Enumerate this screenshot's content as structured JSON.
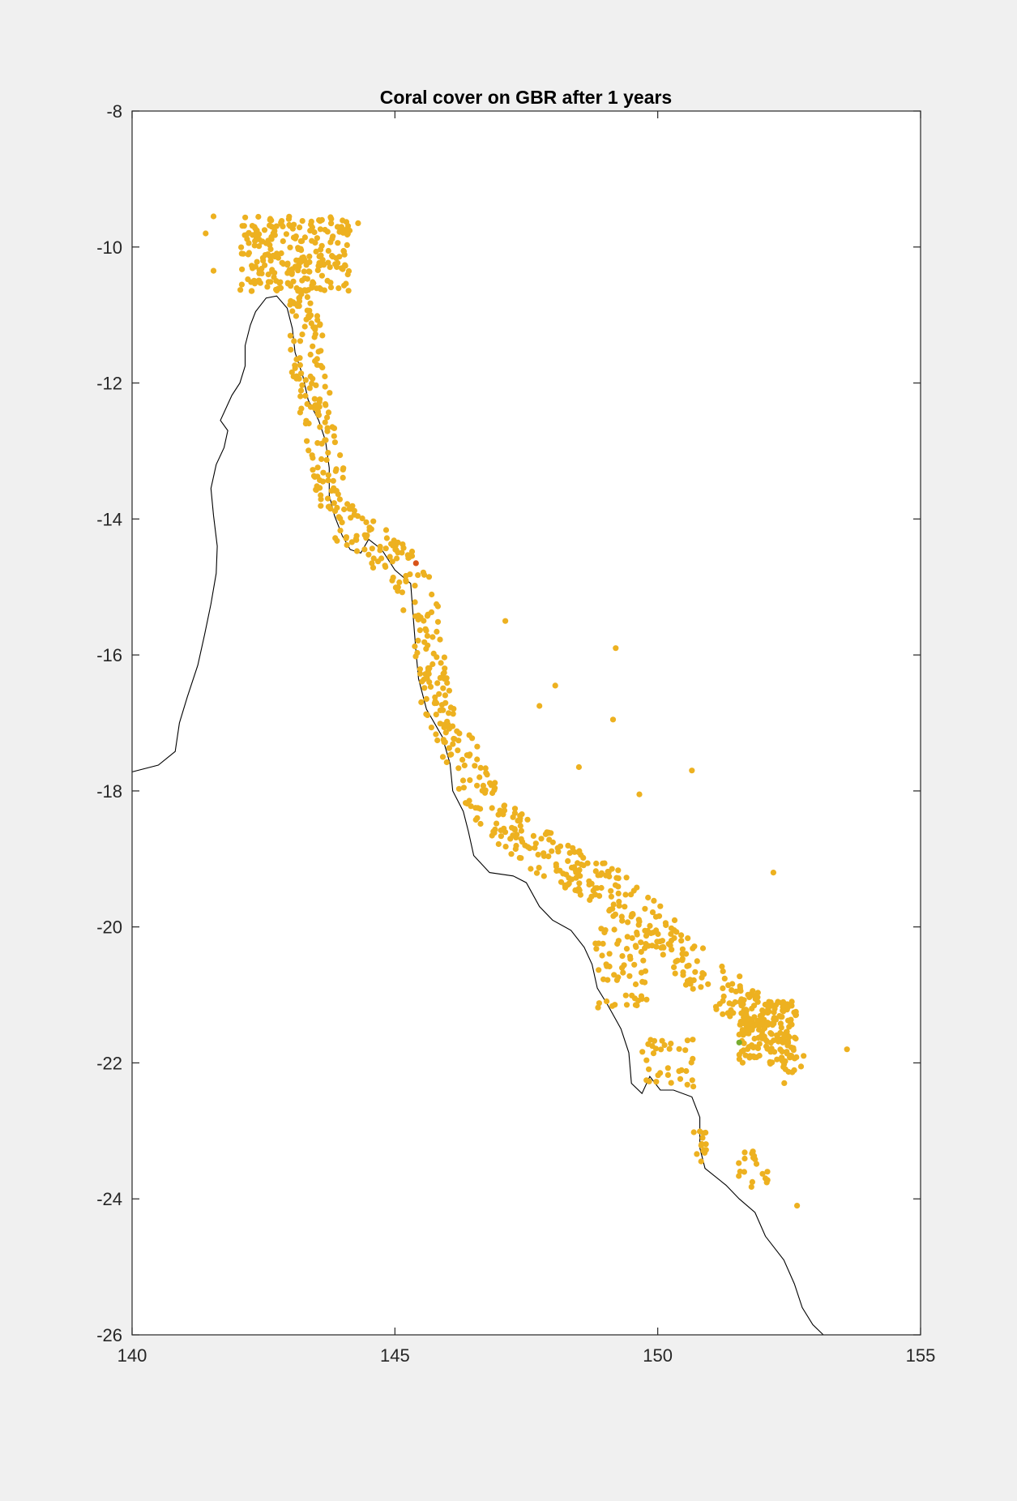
{
  "chart_data": {
    "type": "scatter",
    "title": "Coral cover on GBR after 1 years",
    "xlabel": "",
    "ylabel": "",
    "xlim": [
      140,
      155
    ],
    "ylim": [
      -26,
      -8
    ],
    "xticks": [
      "140",
      "145",
      "150",
      "155"
    ],
    "yticks": [
      "-8",
      "-10",
      "-12",
      "-14",
      "-16",
      "-18",
      "-20",
      "-22",
      "-24",
      "-26"
    ],
    "grid": false,
    "legend": "none",
    "marker_color": "#EDB120",
    "coastline_color": "#000000",
    "coastline": [
      [
        140.0,
        -17.72
      ],
      [
        140.5,
        -17.62
      ],
      [
        140.82,
        -17.42
      ],
      [
        140.9,
        -17.0
      ],
      [
        141.05,
        -16.62
      ],
      [
        141.25,
        -16.15
      ],
      [
        141.38,
        -15.7
      ],
      [
        141.5,
        -15.25
      ],
      [
        141.6,
        -14.8
      ],
      [
        141.62,
        -14.4
      ],
      [
        141.55,
        -13.95
      ],
      [
        141.5,
        -13.55
      ],
      [
        141.6,
        -13.2
      ],
      [
        141.75,
        -12.95
      ],
      [
        141.82,
        -12.7
      ],
      [
        141.68,
        -12.55
      ],
      [
        141.9,
        -12.18
      ],
      [
        142.05,
        -12.0
      ],
      [
        142.15,
        -11.75
      ],
      [
        142.15,
        -11.45
      ],
      [
        142.25,
        -11.15
      ],
      [
        142.35,
        -10.95
      ],
      [
        142.55,
        -10.75
      ],
      [
        142.75,
        -10.72
      ],
      [
        142.95,
        -10.9
      ],
      [
        143.05,
        -11.2
      ],
      [
        143.1,
        -11.55
      ],
      [
        143.25,
        -11.9
      ],
      [
        143.35,
        -12.25
      ],
      [
        143.55,
        -12.55
      ],
      [
        143.68,
        -12.85
      ],
      [
        143.75,
        -13.25
      ],
      [
        143.75,
        -13.65
      ],
      [
        143.85,
        -13.95
      ],
      [
        144.0,
        -14.25
      ],
      [
        144.15,
        -14.45
      ],
      [
        144.35,
        -14.5
      ],
      [
        144.5,
        -14.3
      ],
      [
        144.75,
        -14.45
      ],
      [
        145.0,
        -14.75
      ],
      [
        145.3,
        -14.95
      ],
      [
        145.35,
        -15.45
      ],
      [
        145.4,
        -15.95
      ],
      [
        145.45,
        -16.35
      ],
      [
        145.6,
        -16.8
      ],
      [
        145.9,
        -17.2
      ],
      [
        146.05,
        -17.6
      ],
      [
        146.1,
        -18.0
      ],
      [
        146.3,
        -18.3
      ],
      [
        146.4,
        -18.6
      ],
      [
        146.5,
        -18.95
      ],
      [
        146.8,
        -19.2
      ],
      [
        147.25,
        -19.25
      ],
      [
        147.5,
        -19.35
      ],
      [
        147.75,
        -19.7
      ],
      [
        148.0,
        -19.9
      ],
      [
        148.35,
        -20.05
      ],
      [
        148.6,
        -20.3
      ],
      [
        148.75,
        -20.55
      ],
      [
        148.85,
        -20.9
      ],
      [
        149.05,
        -21.15
      ],
      [
        149.3,
        -21.5
      ],
      [
        149.45,
        -21.85
      ],
      [
        149.5,
        -22.3
      ],
      [
        149.7,
        -22.45
      ],
      [
        149.85,
        -22.2
      ],
      [
        150.05,
        -22.4
      ],
      [
        150.3,
        -22.4
      ],
      [
        150.65,
        -22.5
      ],
      [
        150.8,
        -22.8
      ],
      [
        150.8,
        -23.25
      ],
      [
        150.9,
        -23.55
      ],
      [
        151.3,
        -23.8
      ],
      [
        151.55,
        -24.0
      ],
      [
        151.85,
        -24.2
      ],
      [
        152.05,
        -24.55
      ],
      [
        152.4,
        -24.9
      ],
      [
        152.6,
        -25.25
      ],
      [
        152.75,
        -25.6
      ],
      [
        152.95,
        -25.85
      ],
      [
        153.15,
        -26.0
      ]
    ]
  }
}
